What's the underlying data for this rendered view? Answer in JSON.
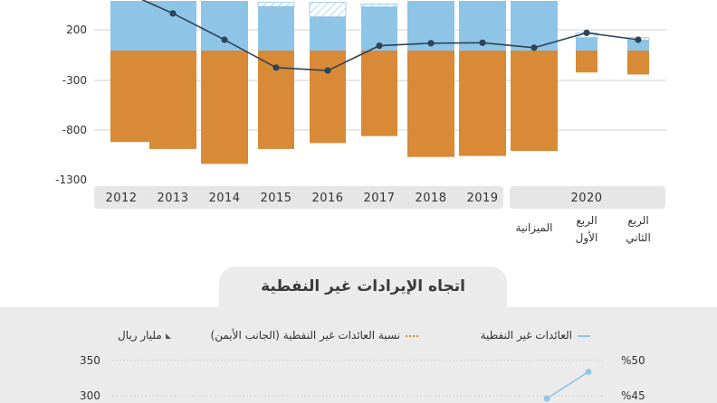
{
  "chart_data": [
    {
      "type": "bar",
      "y_ticks": [
        "200",
        "-300",
        "-800",
        "-1300"
      ],
      "ylim": [
        -1300,
        250
      ],
      "categories": [
        "2012",
        "2013",
        "2014",
        "2015",
        "2016",
        "2017",
        "2018",
        "2019",
        "2020"
      ],
      "category_sublabels": [
        "الميزانية",
        "الربع الأول",
        "الربع الثاني"
      ],
      "groups": [
        {
          "label": "2012",
          "upper": 500,
          "lower": -920,
          "hatched": 0,
          "line": 340
        },
        {
          "label": "2013",
          "upper": 500,
          "lower": -990,
          "hatched": 0,
          "line": 165
        },
        {
          "label": "2014",
          "upper": 500,
          "lower": -1140,
          "hatched": 0,
          "line": -100
        },
        {
          "label": "2015",
          "upper": 445,
          "lower": -990,
          "hatched": 40,
          "line": -380
        },
        {
          "label": "2016",
          "upper": 340,
          "lower": -930,
          "hatched": 145,
          "line": -410
        },
        {
          "label": "2017",
          "upper": 440,
          "lower": -860,
          "hatched": 30,
          "line": -160
        },
        {
          "label": "2018",
          "upper": 500,
          "lower": -1070,
          "hatched": 0,
          "line": -135
        },
        {
          "label": "2019",
          "upper": 500,
          "lower": -1060,
          "hatched": 0,
          "line": -130
        },
        {
          "label": "الميزانية",
          "upper": 500,
          "lower": -1010,
          "hatched": 0,
          "line": -180
        },
        {
          "label": "الربع الأول",
          "upper": 130,
          "lower": -220,
          "hatched": 50,
          "line": -30
        },
        {
          "label": "الربع الثاني",
          "upper": 105,
          "lower": -240,
          "hatched": 25,
          "line": -100
        }
      ],
      "colors": {
        "upper": "#8ec4e6",
        "lower": "#d98a36",
        "line": "#2e4457",
        "hatch": "#8ec4e6"
      }
    },
    {
      "type": "line",
      "title": "اتجاه الإيرادات غير النفطية",
      "unit": "مليار ريال",
      "series": [
        {
          "name": "العائدات غير النفطية",
          "values": [
            296,
            334
          ]
        },
        {
          "name": "نسبة العائدات غير النفطية (الجانب الأيمن)",
          "values": []
        }
      ],
      "y_left_ticks": [
        "350",
        "300"
      ],
      "y_right_ticks": [
        "%50",
        "%45"
      ],
      "colors": {
        "line": "#8ec4e6",
        "line2": "#d98a36"
      }
    }
  ]
}
